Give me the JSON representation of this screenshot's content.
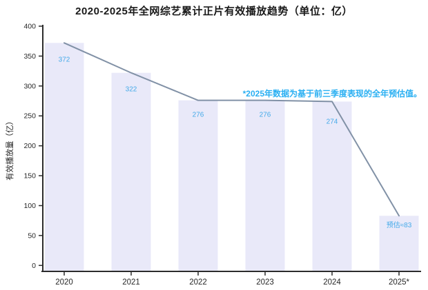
{
  "chart_data": {
    "type": "bar",
    "title": "2020-2025年全网综艺累计正片有效播放趋势（单位：亿）",
    "ylabel": "有效播放量（亿）",
    "xlabel": "",
    "categories": [
      "2020",
      "2021",
      "2022",
      "2023",
      "2024",
      "2025*"
    ],
    "values": [
      372,
      322,
      276,
      276,
      274,
      83
    ],
    "value_labels": [
      "372",
      "322",
      "276",
      "276",
      "274",
      "预估≈83"
    ],
    "line_overlay_values": [
      372,
      322,
      276,
      276,
      274,
      83
    ],
    "annotation": "*2025年数据为基于前三季度表现的全年预估值。",
    "ylim": [
      0,
      400
    ],
    "yticks": [
      0,
      50,
      100,
      150,
      200,
      250,
      300,
      350,
      400
    ],
    "grid": false,
    "legend": "none",
    "colors": {
      "bar": "#e9e9f9",
      "line": "#8191a6",
      "value_label": "#45aae9",
      "annotation": "#29aff2",
      "axis": "#2b2b2b",
      "tick_label": "#262626",
      "title": "#1a1a1a"
    }
  }
}
